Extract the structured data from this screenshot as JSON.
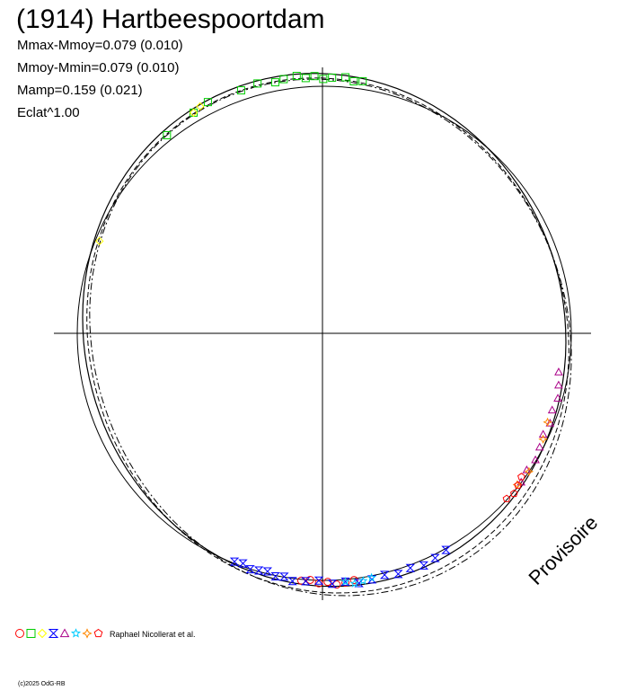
{
  "title": "(1914) Hartbeespoortdam",
  "stats": {
    "mmax_mmoy": "Mmax-Mmoy=0.079 (0.010)",
    "mmoy_mmin": "Mmoy-Mmin=0.079 (0.010)",
    "mamp": "Mamp=0.159 (0.021)",
    "eclat": "Eclat^1.00"
  },
  "attribution": "Raphael Nicollerat et al.",
  "copyright": "(c)2025 OdG-RB",
  "stamp": "Provisoire",
  "chart_data": {
    "type": "scatter",
    "coordinate_system": "polar (rotational phase vs. relative magnitude)",
    "center_magnitude_offset": 0.0,
    "amplitude": 0.159,
    "curves": [
      {
        "name": "",
        "style": "solid",
        "shape": "circle"
      },
      {
        "name": "",
        "style": "solid",
        "shape": "fitted"
      },
      {
        "name": "",
        "style": "dashed",
        "shape": "fitted"
      },
      {
        "name": "",
        "style": "dash-dot",
        "shape": "fitted"
      }
    ],
    "series": [
      {
        "marker": "circle",
        "color": "#ff0000",
        "phase_deg": [
          172,
          174,
          176,
          178,
          180,
          182,
          184
        ]
      },
      {
        "marker": "square",
        "color": "#00cc00",
        "phase_deg": [
          322,
          330,
          334,
          342,
          346,
          350,
          352,
          355,
          357,
          359,
          361,
          363,
          366,
          368,
          370
        ]
      },
      {
        "marker": "diamond",
        "color": "#ffff00",
        "phase_deg": [
          292,
          330,
          332
        ]
      },
      {
        "marker": "hourglass",
        "color": "#0000ff",
        "phase_deg": [
          150,
          153,
          156,
          159,
          162,
          165,
          168,
          171,
          174,
          177,
          180,
          183,
          186,
          188,
          190,
          192,
          194,
          196,
          198,
          200
        ]
      },
      {
        "marker": "triangle",
        "color": "#aa0088",
        "phase_deg": [
          100,
          103,
          106,
          109,
          112,
          115,
          118,
          121,
          124,
          127
        ]
      },
      {
        "marker": "star",
        "color": "#00ccff",
        "phase_deg": [
          168,
          170,
          172,
          174
        ]
      },
      {
        "marker": "star4",
        "color": "#ff8800",
        "phase_deg": [
          112,
          116,
          124,
          128
        ]
      },
      {
        "marker": "pentagon",
        "color": "#ff0000",
        "phase_deg": [
          126,
          128,
          130,
          132
        ]
      }
    ]
  }
}
